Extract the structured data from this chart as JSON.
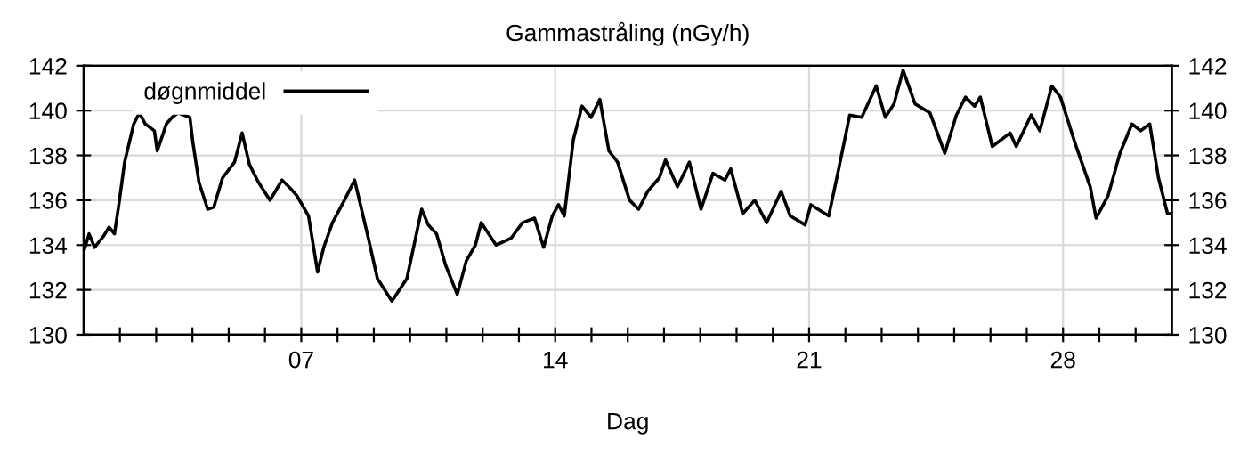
{
  "chart_data": {
    "type": "line",
    "title": "Gammastråling (nGy/h)",
    "xlabel": "Dag",
    "xlim": [
      1,
      31
    ],
    "ylim": [
      130,
      142
    ],
    "yticks": [
      130,
      132,
      134,
      136,
      138,
      140,
      142
    ],
    "y2lim": [
      130,
      142
    ],
    "y2ticks": [
      130,
      132,
      134,
      136,
      138,
      140,
      142
    ],
    "xticks": [
      {
        "value": 2,
        "label": null
      },
      {
        "value": 3,
        "label": null
      },
      {
        "value": 4,
        "label": null
      },
      {
        "value": 5,
        "label": null
      },
      {
        "value": 6,
        "label": null
      },
      {
        "value": 7,
        "label": "07"
      },
      {
        "value": 8,
        "label": null
      },
      {
        "value": 9,
        "label": null
      },
      {
        "value": 10,
        "label": null
      },
      {
        "value": 11,
        "label": null
      },
      {
        "value": 12,
        "label": null
      },
      {
        "value": 13,
        "label": null
      },
      {
        "value": 14,
        "label": "14"
      },
      {
        "value": 15,
        "label": null
      },
      {
        "value": 16,
        "label": null
      },
      {
        "value": 17,
        "label": null
      },
      {
        "value": 18,
        "label": null
      },
      {
        "value": 19,
        "label": null
      },
      {
        "value": 20,
        "label": null
      },
      {
        "value": 21,
        "label": "21"
      },
      {
        "value": 22,
        "label": null
      },
      {
        "value": 23,
        "label": null
      },
      {
        "value": 24,
        "label": null
      },
      {
        "value": 25,
        "label": null
      },
      {
        "value": 26,
        "label": null
      },
      {
        "value": 27,
        "label": null
      },
      {
        "value": 28,
        "label": "28"
      },
      {
        "value": 29,
        "label": null
      },
      {
        "value": 30,
        "label": null
      }
    ],
    "grid": true,
    "legend": "top left",
    "line_style": "solid",
    "marker": "none",
    "series": [
      {
        "name": "døgnmiddel",
        "color": "#000000",
        "x": [
          1,
          1.15,
          1.3,
          1.55,
          1.7,
          1.85,
          1.97,
          2.13,
          2.38,
          2.54,
          2.7,
          2.95,
          3.03,
          3.28,
          3.44,
          3.6,
          3.93,
          4.01,
          4.18,
          4.42,
          4.59,
          4.83,
          5.16,
          5.37,
          5.57,
          5.82,
          6.14,
          6.47,
          6.72,
          6.88,
          7.2,
          7.45,
          7.62,
          7.86,
          8.19,
          8.47,
          8.85,
          9.1,
          9.5,
          9.91,
          10.32,
          10.5,
          10.73,
          10.98,
          11.3,
          11.55,
          11.8,
          11.96,
          12.37,
          12.78,
          13.1,
          13.43,
          13.68,
          13.92,
          14.09,
          14.25,
          14.5,
          14.74,
          14.99,
          15.23,
          15.48,
          15.72,
          16.05,
          16.3,
          16.55,
          16.87,
          17.04,
          17.37,
          17.7,
          18.02,
          18.35,
          18.68,
          18.84,
          19.17,
          19.5,
          19.83,
          20.23,
          20.48,
          20.89,
          21.05,
          21.54,
          21.79,
          22.12,
          22.45,
          22.85,
          23.1,
          23.34,
          23.59,
          23.92,
          24.33,
          24.74,
          25.06,
          25.31,
          25.56,
          25.72,
          26.05,
          26.54,
          26.71,
          27.12,
          27.36,
          27.69,
          27.93,
          28.34,
          28.75,
          28.91,
          29.24,
          29.57,
          29.9,
          30.14,
          30.39,
          30.63,
          30.88,
          31
        ],
        "values": [
          133.7,
          134.5,
          133.9,
          134.4,
          134.8,
          134.5,
          135.8,
          137.7,
          139.4,
          139.9,
          139.4,
          139.1,
          138.2,
          139.4,
          139.7,
          139.9,
          139.7,
          138.6,
          136.8,
          135.6,
          135.7,
          137.0,
          137.7,
          139.0,
          137.6,
          136.8,
          136.0,
          136.9,
          136.5,
          136.2,
          135.3,
          132.8,
          133.9,
          135.0,
          136.0,
          136.9,
          134.3,
          132.5,
          131.5,
          132.5,
          135.6,
          134.9,
          134.5,
          133.1,
          131.8,
          133.3,
          134.0,
          135.0,
          134.0,
          134.3,
          135.0,
          135.2,
          133.9,
          135.3,
          135.8,
          135.3,
          138.7,
          140.2,
          139.7,
          140.5,
          138.2,
          137.7,
          136.0,
          135.6,
          136.4,
          137.0,
          137.8,
          136.6,
          137.7,
          135.6,
          137.2,
          136.9,
          137.4,
          135.4,
          136.0,
          135.0,
          136.4,
          135.3,
          134.9,
          135.8,
          135.3,
          137.2,
          139.8,
          139.7,
          141.1,
          139.7,
          140.3,
          141.8,
          140.3,
          139.9,
          138.1,
          139.8,
          140.6,
          140.2,
          140.6,
          138.4,
          139.0,
          138.4,
          139.8,
          139.1,
          141.1,
          140.6,
          138.5,
          136.6,
          135.2,
          136.2,
          138.1,
          139.4,
          139.1,
          139.4,
          137.0,
          135.4,
          135.4
        ]
      }
    ]
  }
}
